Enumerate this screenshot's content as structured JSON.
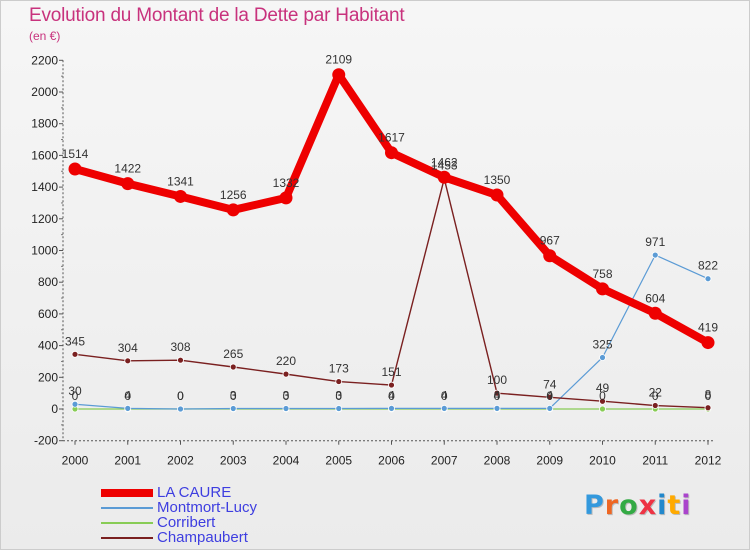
{
  "title": "Evolution du Montant de la Dette par Habitant",
  "unit": "(en €)",
  "colors": {
    "title": "#c8327d",
    "legend_text": "#3e3ee0",
    "axis": "#444444"
  },
  "chart_data": {
    "type": "line",
    "title": "Evolution du Montant de la Dette par Habitant",
    "ylabel": "(en €)",
    "xlabel": "",
    "ylim": [
      -200,
      2200
    ],
    "yticks": [
      -200,
      0,
      200,
      400,
      600,
      800,
      1000,
      1200,
      1400,
      1600,
      1800,
      2000,
      2200
    ],
    "categories": [
      "2000",
      "2001",
      "2002",
      "2003",
      "2004",
      "2005",
      "2006",
      "2007",
      "2008",
      "2009",
      "2010",
      "2011",
      "2012"
    ],
    "series": [
      {
        "name": "LA CAURE",
        "color": "#ee0000",
        "values": [
          1514,
          1422,
          1341,
          1256,
          1332,
          2109,
          1617,
          1462,
          1350,
          967,
          758,
          604,
          419
        ]
      },
      {
        "name": "Montmort-Lucy",
        "color": "#5b9bd5",
        "values": [
          30,
          4,
          0,
          3,
          3,
          3,
          4,
          4,
          4,
          4,
          325,
          971,
          822
        ]
      },
      {
        "name": "Corribert",
        "color": "#88cc55",
        "values": [
          0,
          0,
          0,
          0,
          0,
          0,
          0,
          0,
          0,
          0,
          0,
          0,
          0
        ]
      },
      {
        "name": "Champaubert",
        "color": "#7a2020",
        "values": [
          345,
          304,
          308,
          265,
          220,
          173,
          151,
          1453,
          100,
          74,
          49,
          22,
          8
        ]
      }
    ]
  },
  "logo": {
    "text": "Proxiti",
    "letters": [
      "P",
      "r",
      "o",
      "x",
      "i",
      "t",
      "i"
    ]
  }
}
